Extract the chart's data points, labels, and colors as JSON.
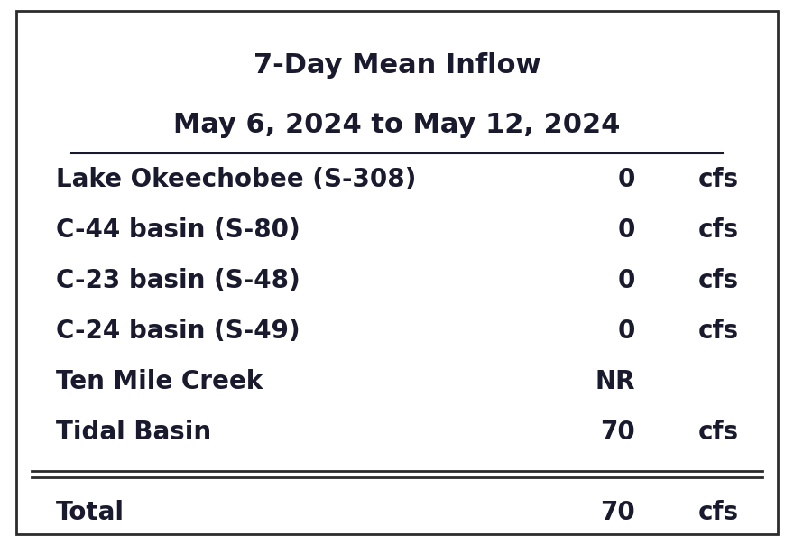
{
  "title_line1": "7-Day Mean Inflow",
  "title_line2": "May 6, 2024 to May 12, 2024",
  "rows": [
    {
      "label": "Lake Okeechobee (S-308)",
      "value": "0",
      "unit": "cfs"
    },
    {
      "label": "C-44 basin (S-80)",
      "value": "0",
      "unit": "cfs"
    },
    {
      "label": "C-23 basin (S-48)",
      "value": "0",
      "unit": "cfs"
    },
    {
      "label": "C-24 basin (S-49)",
      "value": "0",
      "unit": "cfs"
    },
    {
      "label": "Ten Mile Creek",
      "value": "NR",
      "unit": ""
    },
    {
      "label": "Tidal Basin",
      "value": "70",
      "unit": "cfs"
    }
  ],
  "total_label": "Total",
  "total_value": "70",
  "total_unit": "cfs",
  "bg_color": "#ffffff",
  "text_color": "#1a1a2e",
  "border_color": "#2c2c2c",
  "title_fontsize": 22,
  "subtitle_fontsize": 22,
  "row_fontsize": 20,
  "total_fontsize": 20,
  "fig_width": 8.8,
  "fig_height": 6.04
}
